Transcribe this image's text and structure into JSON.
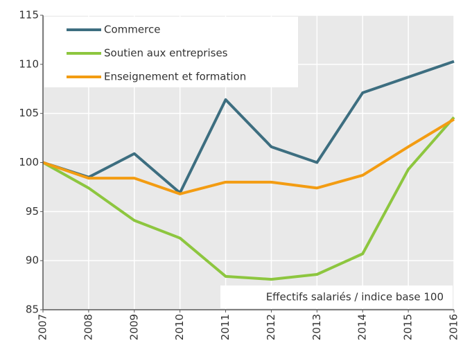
{
  "chart_data": {
    "type": "line",
    "annotation": "Effectifs salariés / indice base 100",
    "x": [
      2007,
      2008,
      2009,
      2010,
      2011,
      2012,
      2013,
      2014,
      2015,
      2016
    ],
    "xlim": [
      2007,
      2016
    ],
    "xticks": [
      2007,
      2008,
      2009,
      2010,
      2011,
      2012,
      2013,
      2014,
      2015,
      2016
    ],
    "ylim": [
      85,
      115
    ],
    "yticks": [
      85,
      90,
      95,
      100,
      105,
      110,
      115
    ],
    "grid": true,
    "legend": "upper left",
    "series": [
      {
        "name": "Commerce",
        "color": "#3d6e80",
        "values": [
          100,
          98.5,
          100.9,
          96.9,
          106.4,
          101.6,
          100.0,
          107.1,
          108.7,
          110.3
        ]
      },
      {
        "name": "Soutien aux entreprises",
        "color": "#8dc63f",
        "values": [
          100,
          97.4,
          94.1,
          92.3,
          88.4,
          88.1,
          88.6,
          90.7,
          99.3,
          104.6
        ]
      },
      {
        "name": "Enseignement et formation",
        "color": "#f39c12",
        "values": [
          100,
          98.4,
          98.4,
          96.8,
          98.0,
          98.0,
          97.4,
          98.7,
          101.6,
          104.4
        ]
      }
    ]
  }
}
